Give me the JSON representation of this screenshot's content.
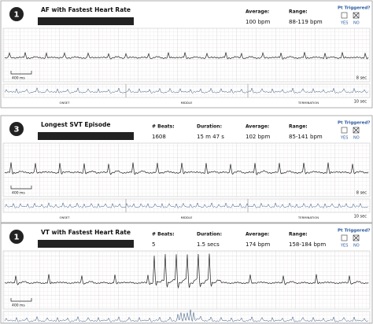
{
  "panels": [
    {
      "number": "1",
      "title": "AF with Fastest Heart Rate",
      "stats": [
        {
          "label": "Average:",
          "value": "100 bpm"
        },
        {
          "label": "Range:",
          "value": "88-119 bpm"
        }
      ],
      "triggered": {
        "label": "Pt Triggered?",
        "yes": "YES",
        "no": "NO"
      },
      "scale": "400 ms",
      "strip_duration": "8 sec",
      "overview_duration": "10 sec",
      "overview_labels": [
        "ONSET",
        "MIDDLE",
        "TERMINATION"
      ]
    },
    {
      "number": "3",
      "title": "Longest SVT Episode",
      "stats": [
        {
          "label": "# Beats:",
          "value": "1608"
        },
        {
          "label": "Duration:",
          "value": "15 m 47 s"
        },
        {
          "label": "Average:",
          "value": "102 bpm"
        },
        {
          "label": "Range:",
          "value": "85-141 bpm"
        }
      ],
      "triggered": {
        "label": "Pt Triggered?",
        "yes": "YES",
        "no": "NO"
      },
      "scale": "400 ms",
      "strip_duration": "8 sec",
      "overview_duration": "10 sec",
      "overview_labels": [
        "ONSET",
        "MIDDLE",
        "TERMINATION"
      ]
    },
    {
      "number": "1",
      "title": "VT with Fastest Heart Rate",
      "stats": [
        {
          "label": "# Beats:",
          "value": "5"
        },
        {
          "label": "Duration:",
          "value": "1.5 secs"
        },
        {
          "label": "Average:",
          "value": "174 bpm"
        },
        {
          "label": "Range:",
          "value": "158-184 bpm"
        }
      ],
      "triggered": {
        "label": "Pt Triggered?",
        "yes": "YES",
        "no": "NO"
      },
      "scale": "400 ms",
      "overview_duration": "30 sec"
    }
  ]
}
